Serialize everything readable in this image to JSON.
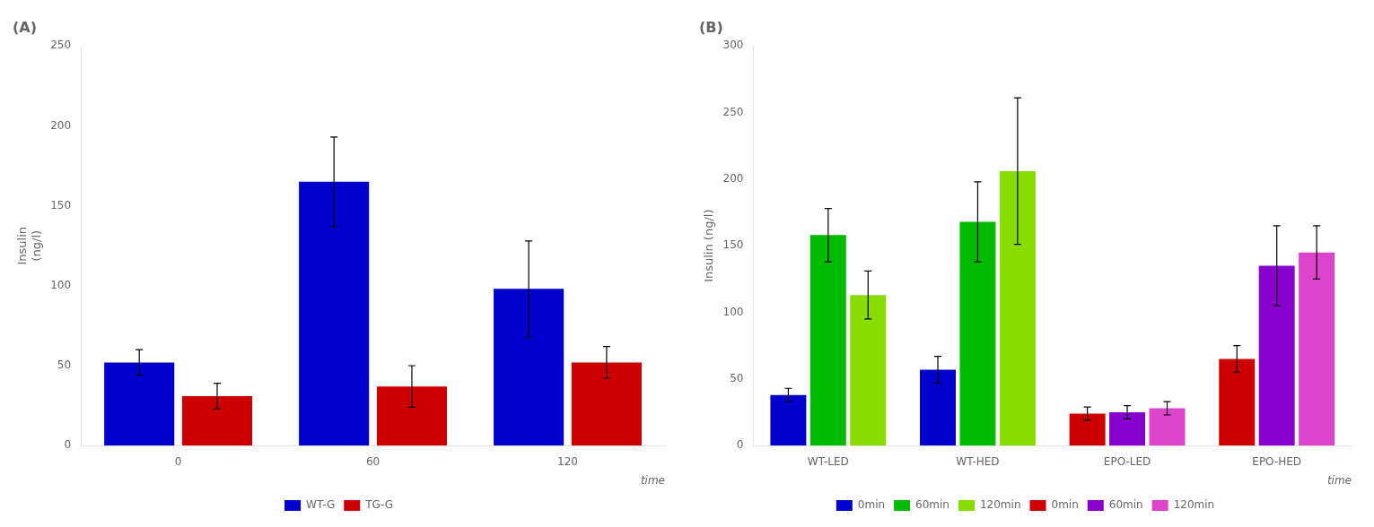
{
  "chart_data": [
    {
      "type": "bar",
      "title": "(A)",
      "ylabel": "Insulin\n(ng/l)",
      "xlabel": "time",
      "categories": [
        "0",
        "60",
        "120"
      ],
      "series": [
        {
          "name": "WT-G",
          "color": "#0000CC",
          "values": [
            52,
            165,
            98
          ],
          "errors": [
            8,
            28,
            30
          ]
        },
        {
          "name": "TG-G",
          "color": "#CC0000",
          "values": [
            31,
            37,
            52
          ],
          "errors": [
            8,
            13,
            10
          ]
        }
      ],
      "ylim": [
        0,
        250
      ],
      "yticks": [
        0,
        50,
        100,
        150,
        200,
        250
      ],
      "grid": false,
      "legend": "bottom"
    },
    {
      "type": "bar",
      "title": "(B)",
      "ylabel": "Insulin (ng/l)",
      "xlabel": "time",
      "categories": [
        "WT-LED",
        "WT-HED",
        "EPO-LED",
        "EPO-HED"
      ],
      "series": [
        {
          "name": "0min",
          "color": "#0000CC",
          "values": [
            38,
            57,
            null,
            null
          ],
          "errors": [
            5,
            10,
            null,
            null
          ]
        },
        {
          "name": "60min",
          "color": "#00BB00",
          "values": [
            158,
            168,
            null,
            null
          ],
          "errors": [
            20,
            30,
            null,
            null
          ]
        },
        {
          "name": "120min",
          "color": "#88DD00",
          "values": [
            113,
            206,
            null,
            null
          ],
          "errors": [
            18,
            55,
            null,
            null
          ]
        },
        {
          "name": "0min",
          "color": "#CC0000",
          "values": [
            null,
            null,
            24,
            65
          ],
          "errors": [
            null,
            null,
            5,
            10
          ]
        },
        {
          "name": "60min",
          "color": "#8800CC",
          "values": [
            null,
            null,
            25,
            135
          ],
          "errors": [
            null,
            null,
            5,
            30
          ]
        },
        {
          "name": "120min",
          "color": "#DD44CC",
          "values": [
            null,
            null,
            28,
            145
          ],
          "errors": [
            null,
            null,
            5,
            20
          ]
        }
      ],
      "ylim": [
        0,
        300
      ],
      "yticks": [
        0,
        50,
        100,
        150,
        200,
        250,
        300
      ],
      "grid": false,
      "legend": "bottom"
    }
  ]
}
